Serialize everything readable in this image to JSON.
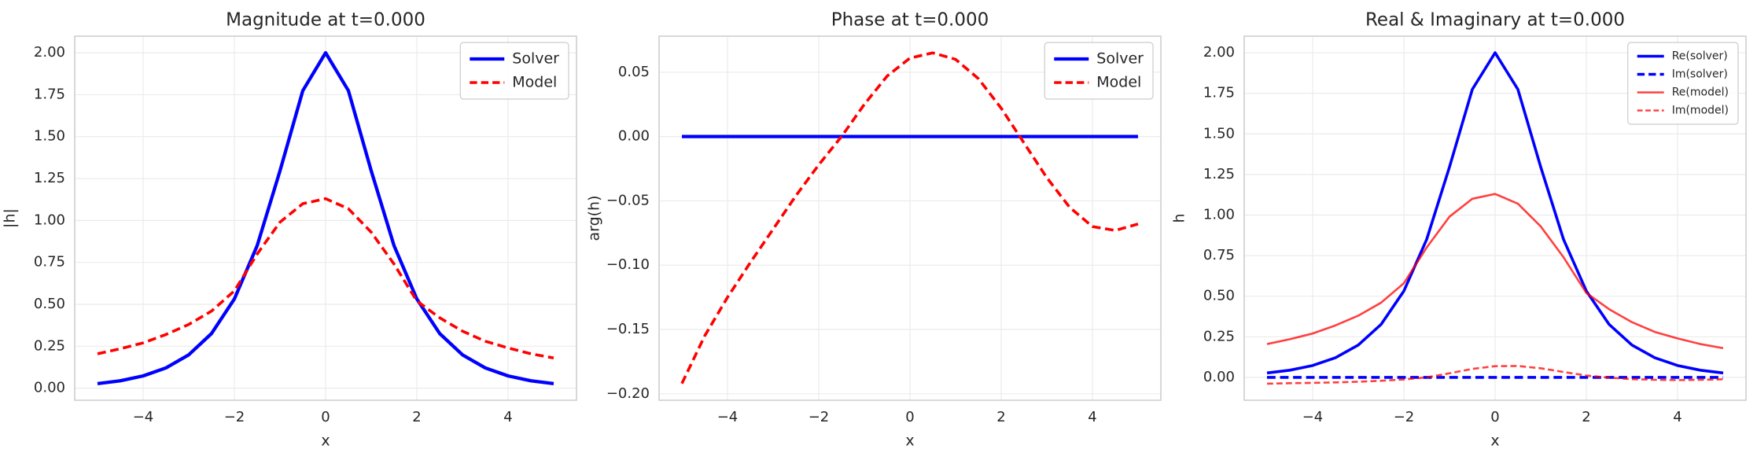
{
  "chart_data": [
    {
      "type": "line",
      "title": "Magnitude at t=0.000",
      "x_label": "x",
      "y_label": "|h|",
      "x": [
        -5,
        -4.5,
        -4,
        -3.5,
        -3,
        -2.5,
        -2,
        -1.5,
        -1,
        -0.5,
        0,
        0.5,
        1,
        1.5,
        2,
        2.5,
        3,
        3.5,
        4,
        4.5,
        5
      ],
      "xlim": [
        -5.5,
        5.5
      ],
      "xticks": [
        {
          "value": -4,
          "label": "−4"
        },
        {
          "value": -2,
          "label": "−2"
        },
        0,
        2,
        4
      ],
      "ylim": [
        -0.072,
        2.099
      ],
      "yticks": [
        {
          "value": 0,
          "label": "0.00"
        },
        {
          "value": 0.25,
          "label": "0.25"
        },
        {
          "value": 0.5,
          "label": "0.50"
        },
        {
          "value": 0.75,
          "label": "0.75"
        },
        {
          "value": 1,
          "label": "1.00"
        },
        {
          "value": 1.25,
          "label": "1.25"
        },
        {
          "value": 1.5,
          "label": "1.50"
        },
        {
          "value": 1.75,
          "label": "1.75"
        },
        {
          "value": 2,
          "label": "2.00"
        }
      ],
      "grid": true,
      "legend": "upper right",
      "series": [
        {
          "name": "Solver",
          "color": "#0000ff",
          "style": "solid",
          "width": 4.3,
          "alpha": 1,
          "values": [
            0.027,
            0.044,
            0.073,
            0.121,
            0.199,
            0.326,
            0.532,
            0.85,
            1.296,
            1.774,
            2,
            1.774,
            1.296,
            0.85,
            0.532,
            0.326,
            0.199,
            0.121,
            0.073,
            0.044,
            0.027
          ]
        },
        {
          "name": "Model",
          "color": "#ff0000",
          "style": "dashed",
          "width": 3.6,
          "alpha": 1,
          "values": [
            0.205,
            0.235,
            0.27,
            0.32,
            0.38,
            0.46,
            0.58,
            0.8,
            0.99,
            1.1,
            1.13,
            1.07,
            0.93,
            0.74,
            0.52,
            0.42,
            0.34,
            0.28,
            0.24,
            0.205,
            0.18
          ]
        }
      ]
    },
    {
      "type": "line",
      "title": "Phase at t=0.000",
      "x_label": "x",
      "y_label": "arg(h)",
      "x": [
        -5,
        -4.5,
        -4,
        -3.5,
        -3,
        -2.5,
        -2,
        -1.5,
        -1,
        -0.5,
        0,
        0.5,
        1,
        1.5,
        2,
        2.5,
        3,
        3.5,
        4,
        4.5,
        5
      ],
      "xlim": [
        -5.5,
        5.5
      ],
      "xticks": [
        {
          "value": -4,
          "label": "−4"
        },
        {
          "value": -2,
          "label": "−2"
        },
        0,
        2,
        4
      ],
      "ylim": [
        -0.205,
        0.078
      ],
      "yticks": [
        {
          "value": -0.2,
          "label": "−0.20"
        },
        {
          "value": -0.15,
          "label": "−0.15"
        },
        {
          "value": -0.1,
          "label": "−0.10"
        },
        {
          "value": -0.05,
          "label": "−0.05"
        },
        {
          "value": 0,
          "label": "0.00"
        },
        {
          "value": 0.05,
          "label": "0.05"
        }
      ],
      "grid": true,
      "legend": "upper right",
      "series": [
        {
          "name": "Solver",
          "color": "#0000ff",
          "style": "solid",
          "width": 4.3,
          "alpha": 1,
          "values": [
            0,
            0,
            0,
            0,
            0,
            0,
            0,
            0,
            0,
            0,
            0,
            0,
            0,
            0,
            0,
            0,
            0,
            0,
            0,
            0,
            0
          ]
        },
        {
          "name": "Model",
          "color": "#ff0000",
          "style": "dashed",
          "width": 3.6,
          "alpha": 1,
          "values": [
            -0.192,
            -0.155,
            -0.125,
            -0.098,
            -0.072,
            -0.046,
            -0.022,
            0,
            0.025,
            0.047,
            0.061,
            0.065,
            0.06,
            0.045,
            0.022,
            -0.005,
            -0.032,
            -0.055,
            -0.07,
            -0.073,
            -0.068
          ]
        }
      ]
    },
    {
      "type": "line",
      "title": "Real & Imaginary at t=0.000",
      "x_label": "x",
      "y_label": "h",
      "x": [
        -5,
        -4.5,
        -4,
        -3.5,
        -3,
        -2.5,
        -2,
        -1.5,
        -1,
        -0.5,
        0,
        0.5,
        1,
        1.5,
        2,
        2.5,
        3,
        3.5,
        4,
        4.5,
        5
      ],
      "xlim": [
        -5.5,
        5.5
      ],
      "xticks": [
        {
          "value": -4,
          "label": "−4"
        },
        {
          "value": -2,
          "label": "−2"
        },
        0,
        2,
        4
      ],
      "ylim": [
        -0.141,
        2.102
      ],
      "yticks": [
        {
          "value": 0,
          "label": "0.00"
        },
        {
          "value": 0.25,
          "label": "0.25"
        },
        {
          "value": 0.5,
          "label": "0.50"
        },
        {
          "value": 0.75,
          "label": "0.75"
        },
        {
          "value": 1,
          "label": "1.00"
        },
        {
          "value": 1.25,
          "label": "1.25"
        },
        {
          "value": 1.5,
          "label": "1.50"
        },
        {
          "value": 1.75,
          "label": "1.75"
        },
        {
          "value": 2,
          "label": "2.00"
        }
      ],
      "grid": true,
      "legend": "upper right",
      "legend_small": true,
      "series": [
        {
          "name": "Re(solver)",
          "color": "#0000ff",
          "style": "solid",
          "width": 3.6,
          "alpha": 1,
          "values": [
            0.027,
            0.044,
            0.073,
            0.121,
            0.199,
            0.326,
            0.532,
            0.85,
            1.296,
            1.774,
            2,
            1.774,
            1.296,
            0.85,
            0.532,
            0.326,
            0.199,
            0.121,
            0.073,
            0.044,
            0.027
          ]
        },
        {
          "name": "Im(solver)",
          "color": "#0000ff",
          "style": "dashed",
          "width": 3.6,
          "alpha": 1,
          "values": [
            0,
            0,
            0,
            0,
            0,
            0,
            0,
            0,
            0,
            0,
            0,
            0,
            0,
            0,
            0,
            0,
            0,
            0,
            0,
            0,
            0
          ]
        },
        {
          "name": "Re(model)",
          "color": "#ff0000",
          "style": "solid",
          "width": 2.6,
          "alpha": 0.75,
          "values": [
            0.205,
            0.235,
            0.27,
            0.32,
            0.38,
            0.46,
            0.58,
            0.8,
            0.99,
            1.1,
            1.13,
            1.07,
            0.93,
            0.74,
            0.52,
            0.42,
            0.34,
            0.28,
            0.24,
            0.205,
            0.18
          ]
        },
        {
          "name": "Im(model)",
          "color": "#ff0000",
          "style": "dashed",
          "width": 2.6,
          "alpha": 0.75,
          "values": [
            -0.039,
            -0.036,
            -0.034,
            -0.031,
            -0.027,
            -0.021,
            -0.013,
            0,
            0.025,
            0.052,
            0.069,
            0.07,
            0.056,
            0.033,
            0.011,
            -0.002,
            -0.011,
            -0.015,
            -0.017,
            -0.015,
            -0.012
          ]
        }
      ]
    }
  ]
}
